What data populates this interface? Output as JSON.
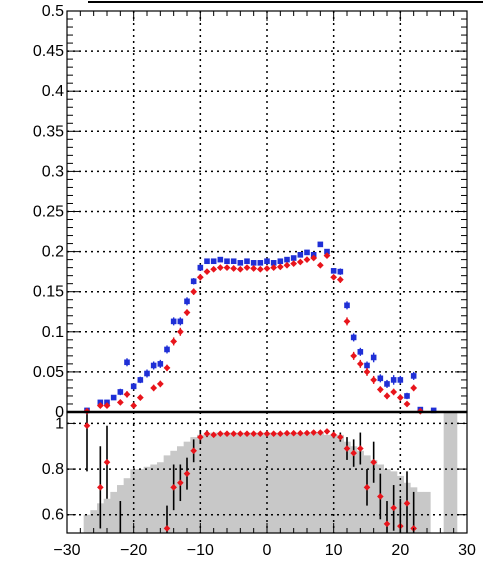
{
  "chart_data": [
    {
      "type": "scatter",
      "panel": "main",
      "title": "",
      "xlabel": "",
      "ylabel": "",
      "xlim": [
        -30,
        30
      ],
      "ylim": [
        0,
        0.5
      ],
      "grid": true,
      "legend": "none",
      "yticks": [
        "0",
        "0.05",
        "0.1",
        "0.15",
        "0.2",
        "0.25",
        "0.3",
        "0.35",
        "0.4",
        "0.45",
        "0.5"
      ],
      "series": [
        {
          "color": "#1f2fd6",
          "marker": "square",
          "points": [
            [
              -27,
              0.002,
              0.002
            ],
            [
              -25,
              0.012,
              0.003
            ],
            [
              -24,
              0.012,
              0.003
            ],
            [
              -23,
              0.018,
              0.003
            ],
            [
              -22,
              0.025,
              0.004
            ],
            [
              -21,
              0.062,
              0.005
            ],
            [
              -20,
              0.032,
              0.004
            ],
            [
              -19,
              0.04,
              0.004
            ],
            [
              -18,
              0.048,
              0.005
            ],
            [
              -17,
              0.058,
              0.005
            ],
            [
              -16,
              0.06,
              0.005
            ],
            [
              -15,
              0.078,
              0.005
            ],
            [
              -14,
              0.113,
              0.005
            ],
            [
              -13,
              0.113,
              0.005
            ],
            [
              -12,
              0.138,
              0.005
            ],
            [
              -11,
              0.163,
              0.004
            ],
            [
              -10,
              0.18,
              0.004
            ],
            [
              -9,
              0.188,
              0.003
            ],
            [
              -8,
              0.188,
              0.003
            ],
            [
              -7,
              0.19,
              0.003
            ],
            [
              -6,
              0.188,
              0.003
            ],
            [
              -5,
              0.188,
              0.003
            ],
            [
              -4,
              0.186,
              0.003
            ],
            [
              -3,
              0.188,
              0.003
            ],
            [
              -2,
              0.186,
              0.003
            ],
            [
              -1,
              0.186,
              0.003
            ],
            [
              0,
              0.188,
              0.003
            ],
            [
              1,
              0.186,
              0.003
            ],
            [
              2,
              0.188,
              0.003
            ],
            [
              3,
              0.19,
              0.003
            ],
            [
              4,
              0.192,
              0.003
            ],
            [
              5,
              0.196,
              0.003
            ],
            [
              6,
              0.199,
              0.003
            ],
            [
              7,
              0.196,
              0.003
            ],
            [
              8,
              0.209,
              0.003
            ],
            [
              9,
              0.2,
              0.003
            ],
            [
              10,
              0.176,
              0.003
            ],
            [
              11,
              0.175,
              0.004
            ],
            [
              12,
              0.133,
              0.005
            ],
            [
              13,
              0.093,
              0.005
            ],
            [
              14,
              0.075,
              0.005
            ],
            [
              15,
              0.058,
              0.005
            ],
            [
              16,
              0.068,
              0.006
            ],
            [
              17,
              0.042,
              0.005
            ],
            [
              18,
              0.035,
              0.005
            ],
            [
              19,
              0.04,
              0.006
            ],
            [
              20,
              0.04,
              0.005
            ],
            [
              21,
              0.02,
              0.004
            ],
            [
              22,
              0.045,
              0.005
            ],
            [
              23,
              0.003,
              0.003
            ],
            [
              25,
              0.002,
              0.002
            ]
          ]
        },
        {
          "color": "#e8141b",
          "marker": "diamond",
          "points": [
            [
              -27,
              0.001,
              0.001
            ],
            [
              -25,
              0.008,
              0.002
            ],
            [
              -24,
              0.008,
              0.002
            ],
            [
              -22,
              0.012,
              0.003
            ],
            [
              -21,
              0.022,
              0.004
            ],
            [
              -20,
              0.008,
              0.002
            ],
            [
              -19,
              0.018,
              0.003
            ],
            [
              -17,
              0.03,
              0.004
            ],
            [
              -16,
              0.035,
              0.004
            ],
            [
              -15,
              0.055,
              0.004
            ],
            [
              -14,
              0.088,
              0.005
            ],
            [
              -13,
              0.1,
              0.005
            ],
            [
              -12,
              0.124,
              0.004
            ],
            [
              -11,
              0.15,
              0.004
            ],
            [
              -10,
              0.168,
              0.004
            ],
            [
              -9,
              0.175,
              0.003
            ],
            [
              -8,
              0.178,
              0.003
            ],
            [
              -7,
              0.18,
              0.003
            ],
            [
              -6,
              0.18,
              0.003
            ],
            [
              -5,
              0.179,
              0.003
            ],
            [
              -4,
              0.178,
              0.003
            ],
            [
              -3,
              0.18,
              0.003
            ],
            [
              -2,
              0.179,
              0.003
            ],
            [
              -1,
              0.178,
              0.003
            ],
            [
              0,
              0.179,
              0.003
            ],
            [
              1,
              0.18,
              0.003
            ],
            [
              2,
              0.181,
              0.003
            ],
            [
              3,
              0.183,
              0.003
            ],
            [
              4,
              0.185,
              0.003
            ],
            [
              5,
              0.187,
              0.003
            ],
            [
              6,
              0.19,
              0.003
            ],
            [
              7,
              0.192,
              0.003
            ],
            [
              8,
              0.183,
              0.003
            ],
            [
              9,
              0.195,
              0.003
            ],
            [
              10,
              0.168,
              0.003
            ],
            [
              11,
              0.165,
              0.004
            ],
            [
              12,
              0.113,
              0.005
            ],
            [
              13,
              0.07,
              0.005
            ],
            [
              14,
              0.06,
              0.005
            ],
            [
              15,
              0.05,
              0.005
            ],
            [
              16,
              0.04,
              0.005
            ],
            [
              17,
              0.028,
              0.004
            ],
            [
              18,
              0.02,
              0.004
            ],
            [
              19,
              0.025,
              0.004
            ],
            [
              20,
              0.018,
              0.004
            ],
            [
              21,
              0.01,
              0.003
            ],
            [
              22,
              0.03,
              0.004
            ],
            [
              23,
              0.001,
              0.001
            ]
          ]
        }
      ]
    },
    {
      "type": "scatter",
      "panel": "ratio",
      "title": "",
      "xlabel": "",
      "ylabel": "",
      "xlim": [
        -30,
        30
      ],
      "ylim": [
        0.52,
        1.05
      ],
      "grid": true,
      "legend": "none",
      "xticks": [
        "−30",
        "−20",
        "−10",
        "0",
        "10",
        "20",
        "30"
      ],
      "yticks": [
        "0.6",
        "0.8",
        "1"
      ],
      "band": {
        "color": "#c8c8c8",
        "bins": [
          [
            -28,
            0.38
          ],
          [
            -27,
            0.6
          ],
          [
            -26,
            0.62
          ],
          [
            -25,
            0.65
          ],
          [
            -24,
            0.67
          ],
          [
            -23,
            0.7
          ],
          [
            -22,
            0.73
          ],
          [
            -21,
            0.76
          ],
          [
            -20,
            0.8
          ],
          [
            -19,
            0.8
          ],
          [
            -18,
            0.81
          ],
          [
            -17,
            0.82
          ],
          [
            -16,
            0.83
          ],
          [
            -15,
            0.86
          ],
          [
            -14,
            0.88
          ],
          [
            -13,
            0.9
          ],
          [
            -12,
            0.92
          ],
          [
            -11,
            0.94
          ],
          [
            -10,
            0.95
          ],
          [
            -9,
            0.955
          ],
          [
            -8,
            0.96
          ],
          [
            -7,
            0.96
          ],
          [
            -6,
            0.96
          ],
          [
            -5,
            0.96
          ],
          [
            -4,
            0.96
          ],
          [
            -3,
            0.96
          ],
          [
            -2,
            0.96
          ],
          [
            -1,
            0.96
          ],
          [
            0,
            0.96
          ],
          [
            1,
            0.96
          ],
          [
            2,
            0.96
          ],
          [
            3,
            0.96
          ],
          [
            4,
            0.96
          ],
          [
            5,
            0.96
          ],
          [
            6,
            0.96
          ],
          [
            7,
            0.96
          ],
          [
            8,
            0.96
          ],
          [
            9,
            0.95
          ],
          [
            10,
            0.95
          ],
          [
            11,
            0.95
          ],
          [
            12,
            0.92
          ],
          [
            13,
            0.9
          ],
          [
            14,
            0.88
          ],
          [
            15,
            0.86
          ],
          [
            16,
            0.84
          ],
          [
            17,
            0.82
          ],
          [
            18,
            0.8
          ],
          [
            19,
            0.79
          ],
          [
            20,
            0.77
          ],
          [
            21,
            0.74
          ],
          [
            22,
            0.72
          ],
          [
            23,
            0.7
          ],
          [
            24,
            0.7
          ],
          [
            25,
            0.4
          ],
          [
            26,
            0.38
          ],
          [
            27,
            1.05
          ],
          [
            28,
            1.05
          ]
        ]
      },
      "series": [
        {
          "color": "#e8141b",
          "marker": "diamond",
          "points": [
            [
              -27,
              0.99,
              0.2
            ],
            [
              -25,
              0.72,
              0.18
            ],
            [
              -24,
              0.83,
              0.16
            ],
            [
              -22,
              0.5,
              0.16
            ],
            [
              -15,
              0.54,
              0.1
            ],
            [
              -14,
              0.72,
              0.1
            ],
            [
              -13,
              0.74,
              0.08
            ],
            [
              -12,
              0.78,
              0.07
            ],
            [
              -11,
              0.88,
              0.05
            ],
            [
              -10,
              0.94,
              0.03
            ],
            [
              -9,
              0.955,
              0.015
            ],
            [
              -8,
              0.95,
              0.008
            ],
            [
              -7,
              0.955,
              0.008
            ],
            [
              -6,
              0.955,
              0.008
            ],
            [
              -5,
              0.955,
              0.008
            ],
            [
              -4,
              0.955,
              0.008
            ],
            [
              -3,
              0.955,
              0.008
            ],
            [
              -2,
              0.955,
              0.008
            ],
            [
              -1,
              0.955,
              0.008
            ],
            [
              0,
              0.955,
              0.008
            ],
            [
              1,
              0.955,
              0.008
            ],
            [
              2,
              0.955,
              0.008
            ],
            [
              3,
              0.957,
              0.008
            ],
            [
              4,
              0.957,
              0.008
            ],
            [
              5,
              0.957,
              0.008
            ],
            [
              6,
              0.958,
              0.008
            ],
            [
              7,
              0.96,
              0.008
            ],
            [
              8,
              0.96,
              0.008
            ],
            [
              9,
              0.965,
              0.01
            ],
            [
              10,
              0.95,
              0.015
            ],
            [
              11,
              0.94,
              0.02
            ],
            [
              12,
              0.89,
              0.05
            ],
            [
              13,
              0.87,
              0.06
            ],
            [
              14,
              0.89,
              0.07
            ],
            [
              15,
              0.72,
              0.08
            ],
            [
              16,
              0.83,
              0.09
            ],
            [
              17,
              0.68,
              0.1
            ],
            [
              18,
              0.56,
              0.1
            ],
            [
              19,
              0.63,
              0.1
            ],
            [
              20,
              0.55,
              0.12
            ],
            [
              21,
              0.65,
              0.14
            ],
            [
              22,
              0.54,
              0.16
            ]
          ]
        }
      ]
    }
  ]
}
